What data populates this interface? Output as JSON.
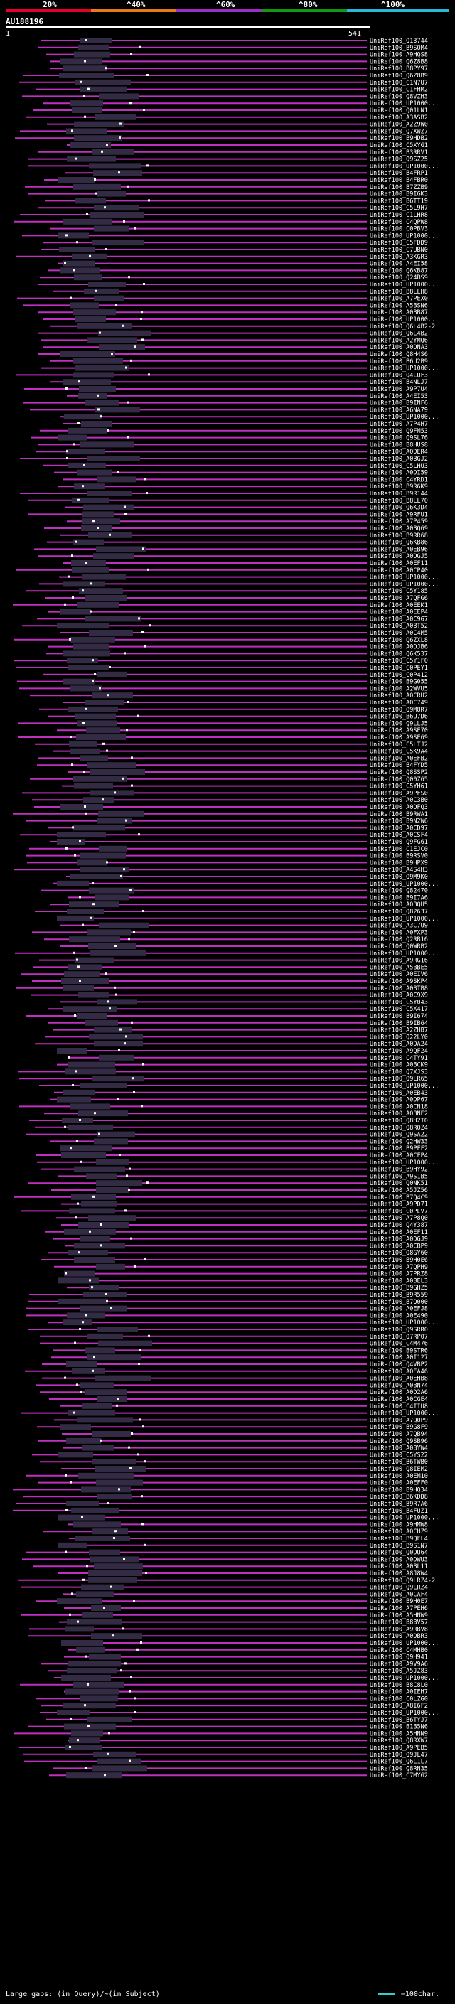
{
  "scale": {
    "labels": [
      "20%",
      "^40%",
      "^60%",
      "^80%",
      "^100%"
    ],
    "colors": [
      "#e8002a",
      "#e87a1a",
      "#9b2fc4",
      "#119911",
      "#29b8d8"
    ]
  },
  "query": {
    "title": "AU188196",
    "start": "1",
    "end": "541"
  },
  "hit_color": "#c030c0",
  "hits": [
    "UniRef100_Q13744",
    "UniRef100_B9SQM4",
    "UniRef100_A9HQS8",
    "UniRef100_Q6Z8B8",
    "UniRef100_B8PY97",
    "UniRef100_Q6Z8B9",
    "UniRef100_C1N7U7",
    "UniRef100_C1FHM2",
    "UniRef100_Q8VZH3",
    "UniRef100_UP1000...",
    "UniRef100_Q01LN1",
    "UniRef100_A3ASB2",
    "UniRef100_A2Z9W0",
    "UniRef100_Q7XWZ7",
    "UniRef100_B9HDB2",
    "UniRef100_C5XYG1",
    "UniRef100_B3RRV1",
    "UniRef100_Q9SZ25",
    "UniRef100_UP1000...",
    "UniRef100_B4FRP1",
    "UniRef100_B4FBR0",
    "UniRef100_B7ZZB9",
    "UniRef100_B9IGK3",
    "UniRef100_B6TT19",
    "UniRef100_C5L9H7",
    "UniRef100_C1LHR8",
    "UniRef100_C4QPW8",
    "UniRef100_C0PBV3",
    "UniRef100_UP1000...",
    "UniRef100_C5FDD9",
    "UniRef100_C7UBN0",
    "UniRef100_A3KGR3",
    "UniRef100_A4EI58",
    "UniRef100_Q6KB87",
    "UniRef100_Q24BS9",
    "UniRef100_UP1000...",
    "UniRef100_B8LLH8",
    "UniRef100_A7PEX0",
    "UniRef100_A5BSN6",
    "UniRef100_A0BB87",
    "UniRef100_UP1000...",
    "UniRef100_Q6L4B2-2",
    "UniRef100_Q6L4B2",
    "UniRef100_A2YMQ6",
    "UniRef100_A0DNA3",
    "UniRef100_Q8H4S6",
    "UniRef100_B6U2B9",
    "UniRef100_UP1000...",
    "UniRef100_Q4LUF3",
    "UniRef100_B4NLJ7",
    "UniRef100_A9P7U4",
    "UniRef100_A4EI53",
    "UniRef100_B9INF6",
    "UniRef100_A6NA79",
    "UniRef100_UP1000...",
    "UniRef100_A7P4H7",
    "UniRef100_Q9FM53",
    "UniRef100_Q9SL76",
    "UniRef100_B8HUS8",
    "UniRef100_A0DER4",
    "UniRef100_A0BGJ2",
    "UniRef100_C5LHU3",
    "UniRef100_A0DI59",
    "UniRef100_C4YRD1",
    "UniRef100_B9R6K9",
    "UniRef100_B9R144",
    "UniRef100_B8LL70",
    "UniRef100_Q6K3D4",
    "UniRef100_A9RFU1",
    "UniRef100_A7P459",
    "UniRef100_A0BQ69",
    "UniRef100_B9RR68",
    "UniRef100_Q6KB86",
    "UniRef100_A0EB96",
    "UniRef100_A0DGJ5",
    "UniRef100_A0EF11",
    "UniRef100_A0CP40",
    "UniRef100_UP1000...",
    "UniRef100_UP1000...",
    "UniRef100_C5Y185",
    "UniRef100_A7QFG6",
    "UniRef100_A0EEK1",
    "UniRef100_A0EEP4",
    "UniRef100_A0C9G7",
    "UniRef100_A0BT52",
    "UniRef100_A0C4M5",
    "UniRef100_Q6ZXL8",
    "UniRef100_A0DJB6",
    "UniRef100_Q6K537",
    "UniRef100_C5Y1F0",
    "UniRef100_C0PEY1",
    "UniRef100_C0P412",
    "UniRef100_B9G055",
    "UniRef100_A2WVU5",
    "UniRef100_A0CRU2",
    "UniRef100_A0C749",
    "UniRef100_Q9M8R7",
    "UniRef100_B6U7D6",
    "UniRef100_Q9LLJ5",
    "UniRef100_A9SE70",
    "UniRef100_A9SE69",
    "UniRef100_C5LTJ2",
    "UniRef100_C5K9A4",
    "UniRef100_A0EFB2",
    "UniRef100_B4FYD5",
    "UniRef100_Q8SSP2",
    "UniRef100_Q00Z65",
    "UniRef100_C5YH61",
    "UniRef100_A9PFS0",
    "UniRef100_A0C3B0",
    "UniRef100_A0DFQ3",
    "UniRef100_B9RWA1",
    "UniRef100_B9N2W6",
    "UniRef100_A0CD97",
    "UniRef100_A0CSF4",
    "UniRef100_Q9FG61",
    "UniRef100_C1EJC0",
    "UniRef100_B9RSV0",
    "UniRef100_B9HPX9",
    "UniRef100_A4S4H3",
    "UniRef100_Q9M9K0",
    "UniRef100_UP1000...",
    "UniRef100_Q82470",
    "UniRef100_B9I7A6",
    "UniRef100_A0BQU5",
    "UniRef100_Q82637",
    "UniRef100_UP1000...",
    "UniRef100_A3C7U9",
    "UniRef100_A0FXP3",
    "UniRef100_Q2RB16",
    "UniRef100_Q0WRB2",
    "UniRef100_UP1000...",
    "UniRef100_A9RG16",
    "UniRef100_A5BBE5",
    "UniRef100_A0EIV6",
    "UniRef100_A9SKP4",
    "UniRef100_A0BTB8",
    "UniRef100_A0C9X9",
    "UniRef100_C5Y043",
    "UniRef100_C5X417",
    "UniRef100_B9I674",
    "UniRef100_B9IB64",
    "UniRef100_A2ZHB7",
    "UniRef100_Q22LY0",
    "UniRef100_A0DA24",
    "UniRef100_A9QF24",
    "UniRef100_C4TY91",
    "UniRef100_A0BCK9",
    "UniRef100_Q7XJS3",
    "UniRef100_Q9LR65",
    "UniRef100_UP1000...",
    "UniRef100_A0EB43",
    "UniRef100_A0DP67",
    "UniRef100_A0CN18",
    "UniRef100_A0BNE2",
    "UniRef100_Q8H2T0",
    "UniRef100_Q8RQZ4",
    "UniRef100_Q9SA22",
    "UniRef100_Q2HW33",
    "UniRef100_B9PFF2",
    "UniRef100_A0CFP4",
    "UniRef100_UP1000...",
    "UniRef100_B9HY92",
    "UniRef100_A9S1B5",
    "UniRef100_Q0NK51",
    "UniRef100_A5JZ56",
    "UniRef100_B7Q4C9",
    "UniRef100_A9PD71",
    "UniRef100_C0PLV7",
    "UniRef100_A7P8Q0",
    "UniRef100_Q4Y387",
    "UniRef100_A0EF11",
    "UniRef100_A0DGJ9",
    "UniRef100_A0CBP9",
    "UniRef100_Q8GY60",
    "UniRef100_B9H0E6",
    "UniRef100_A7QPH9",
    "UniRef100_A7PRZ8",
    "UniRef100_A0BEL3",
    "UniRef100_B9GHZ5",
    "UniRef100_B9R559",
    "UniRef100_B7Q000",
    "UniRef100_A0EFJ8",
    "UniRef100_A0E490",
    "UniRef100_UP1000...",
    "UniRef100_Q9SRR0",
    "UniRef100_Q7RP07",
    "UniRef100_C4M476",
    "UniRef100_B9STR6",
    "UniRef100_A0I127",
    "UniRef100_Q4VBP2",
    "UniRef100_A0EA46",
    "UniRef100_A0EHB8",
    "UniRef100_A0BN74",
    "UniRef100_A0D2A6",
    "UniRef100_A0CGE4",
    "UniRef100_C4IIU8",
    "UniRef100_UP1000...",
    "UniRef100_A7Q0P9",
    "UniRef100_B9G8F9",
    "UniRef100_A7QB94",
    "UniRef100_Q9SB96",
    "UniRef100_A0BYW4",
    "UniRef100_C5YS22",
    "UniRef100_B6TWB0",
    "UniRef100_Q8IEM2",
    "UniRef100_A0EM10",
    "UniRef100_A0EFF0",
    "UniRef100_B9HQ34",
    "UniRef100_B6KDD8",
    "UniRef100_B9R7A6",
    "UniRef100_B4FUZ1",
    "UniRef100_UP1000...",
    "UniRef100_A9HMW8",
    "UniRef100_A0CHZ9",
    "UniRef100_B9QFL4",
    "UniRef100_B9S1N7",
    "UniRef100_Q0DU64",
    "UniRef100_A0DWU3",
    "UniRef100_A0BL11",
    "UniRef100_A8J8W4",
    "UniRef100_Q9LRZ4-2",
    "UniRef100_Q9LRZ4",
    "UniRef100_A0CAF4",
    "UniRef100_B9H0E7",
    "UniRef100_A7PEH6",
    "UniRef100_A5HNW9",
    "UniRef100_B8BV57",
    "UniRef100_A9RBV8",
    "UniRef100_A0DBR3",
    "UniRef100_UP1000...",
    "UniRef100_C4MHB0",
    "UniRef100_Q9H941",
    "UniRef100_A9V9A6",
    "UniRef100_A5JZ83",
    "UniRef100_UP1000...",
    "UniRef100_B8C8L0",
    "UniRef100_A0IEH7",
    "UniRef100_C0LZG0",
    "UniRef100_A8I6F2",
    "UniRef100_UP1000...",
    "UniRef100_B6TYJ7",
    "UniRef100_B1B5N6",
    "UniRef100_A5HNN9",
    "UniRef100_Q8RXW7",
    "UniRef100_A9PEB5",
    "UniRef100_Q9JL47",
    "UniRef100_Q6L1L7",
    "UniRef100_Q8RN35",
    "UniRef100_C7MYG2"
  ],
  "footer": {
    "gaps_label": "Large gaps:",
    "legend_text": "(in Query)/~(in Subject)",
    "scale_text": "=100char."
  }
}
